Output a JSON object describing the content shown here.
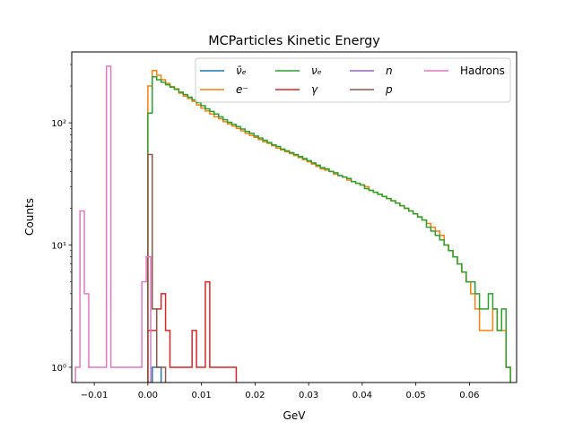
{
  "chart_data": {
    "type": "histogram",
    "title": "MCParticles Kinetic Energy",
    "xlabel": "GeV",
    "ylabel": "Counts",
    "xlim": [
      -0.0142,
      0.0688
    ],
    "ylim": [
      0.75,
      380
    ],
    "yscale": "log",
    "grid": false,
    "legend_position": "top-right",
    "bin_width": 0.000825,
    "x_ticks": [
      -0.01,
      0.0,
      0.01,
      0.02,
      0.03,
      0.04,
      0.05,
      0.06
    ],
    "x_tick_labels": [
      "−0.01",
      "0.00",
      "0.01",
      "0.02",
      "0.03",
      "0.04",
      "0.05",
      "0.06"
    ],
    "y_ticks": [
      1,
      10,
      100
    ],
    "y_tick_labels": [
      "10⁰",
      "10¹",
      "10²"
    ],
    "series": [
      {
        "name": "ν̄ₑ",
        "color": "#1f77b4",
        "edges_start": 0.0,
        "values": [
          0,
          1,
          1
        ]
      },
      {
        "name": "e⁻",
        "color": "#ff7f0e",
        "edges_start": 0.0,
        "values": [
          200,
          268,
          245,
          225,
          210,
          198,
          190,
          175,
          165,
          158,
          150,
          140,
          132,
          125,
          118,
          112,
          108,
          102,
          98,
          94,
          90,
          86,
          82,
          79,
          76,
          73,
          70,
          68,
          65,
          62,
          60,
          58,
          56,
          54,
          52,
          50,
          48,
          46,
          44,
          42,
          41,
          40,
          38,
          37,
          36,
          34,
          33,
          32,
          31,
          30,
          28,
          27,
          26,
          25,
          24,
          23,
          22,
          21,
          20,
          19,
          18,
          17,
          16,
          15,
          14,
          13,
          12,
          10,
          9,
          8,
          7,
          6,
          5,
          4,
          3,
          2,
          2,
          2,
          3,
          2,
          2,
          1
        ]
      },
      {
        "name": "νₑ",
        "color": "#2ca02c",
        "edges_start": 0.0,
        "values": [
          120,
          238,
          225,
          215,
          205,
          196,
          188,
          178,
          170,
          162,
          154,
          146,
          138,
          130,
          124,
          118,
          112,
          106,
          101,
          97,
          93,
          89,
          85,
          82,
          78,
          75,
          72,
          69,
          66,
          64,
          61,
          59,
          57,
          55,
          53,
          51,
          49,
          47,
          45,
          43,
          42,
          40,
          39,
          37,
          36,
          35,
          33,
          32,
          31,
          29,
          28,
          27,
          26,
          25,
          24,
          23,
          22,
          21,
          20,
          19,
          18,
          17,
          16,
          14,
          13,
          12,
          11,
          10,
          9,
          8,
          7,
          6,
          5,
          5,
          4,
          3,
          3,
          4,
          3,
          2,
          3,
          1
        ]
      },
      {
        "name": "n",
        "color": "#9467bd",
        "edges_start": 0.0,
        "values": []
      },
      {
        "name": "γ",
        "color": "#d62728",
        "edges_start": 0.0,
        "values": [
          2,
          2,
          3,
          4,
          2,
          1,
          1,
          1,
          1,
          1,
          2,
          1,
          1,
          5,
          1,
          1,
          1,
          1,
          1,
          1
        ]
      },
      {
        "name": "p",
        "color": "#8c564b",
        "edges_start": 0.0,
        "values": [
          55,
          3,
          1,
          1
        ]
      },
      {
        "name": "Hadrons",
        "color": "#e377c2",
        "edges_start": -0.0135,
        "values": [
          1,
          19,
          4,
          1,
          1,
          1,
          1,
          290,
          1,
          1,
          1,
          1,
          1,
          1,
          1,
          5,
          8
        ]
      }
    ]
  }
}
